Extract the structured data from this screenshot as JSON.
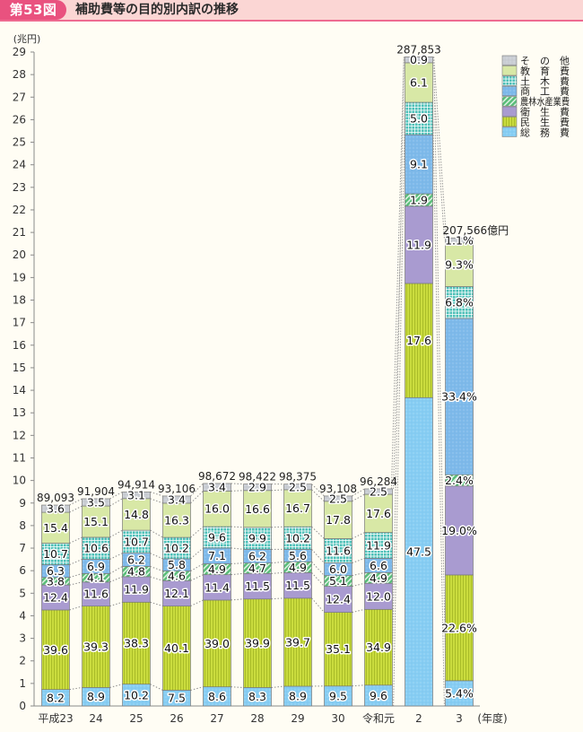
{
  "header": {
    "badge": "第53図",
    "title": "補助費等の目的別内訳の推移"
  },
  "chart_data": {
    "type": "bar",
    "stacked": true,
    "title": "補助費等の目的別内訳の推移",
    "ylabel": "(兆円)",
    "xlabel": "(年度)",
    "ylim": [
      0,
      29
    ],
    "yticks": [
      0,
      1,
      2,
      3,
      4,
      5,
      6,
      7,
      8,
      9,
      10,
      11,
      12,
      13,
      14,
      15,
      16,
      17,
      18,
      19,
      20,
      21,
      22,
      23,
      24,
      25,
      26,
      27,
      28,
      29
    ],
    "grid": false,
    "legend_position": "top-right",
    "segment_values_unit": "percent of total",
    "totals_unit": "億円",
    "categories": [
      "平成23",
      "24",
      "25",
      "26",
      "27",
      "28",
      "29",
      "30",
      "令和元",
      "2",
      "3"
    ],
    "totals": [
      89093,
      91904,
      94914,
      93106,
      98672,
      98422,
      98375,
      93108,
      96284,
      287853,
      207566
    ],
    "total_labels": [
      "89,093",
      "91,904",
      "94,914",
      "93,106",
      "98,672",
      "98,422",
      "98,375",
      "93,108",
      "96,284",
      "287,853",
      "207,566億円"
    ],
    "series": [
      {
        "key": "somu",
        "name": "総務費",
        "color": "#86cdf3",
        "pattern": "dots",
        "values": [
          8.2,
          8.9,
          10.2,
          7.5,
          8.6,
          8.3,
          8.9,
          9.5,
          9.6,
          47.5,
          5.4
        ],
        "labels": [
          "8.2",
          "8.9",
          "10.2",
          "7.5",
          "8.6",
          "8.3",
          "8.9",
          "9.5",
          "9.6",
          "47.5",
          "5.4%"
        ]
      },
      {
        "key": "minsei",
        "name": "民生費",
        "color": "#cadc3e",
        "pattern": "vertical-stripes",
        "values": [
          39.6,
          39.3,
          38.3,
          40.1,
          39.0,
          39.9,
          39.7,
          35.1,
          34.9,
          17.6,
          22.6
        ],
        "labels": [
          "39.6",
          "39.3",
          "38.3",
          "40.1",
          "39.0",
          "39.9",
          "39.7",
          "35.1",
          "34.9",
          "17.6",
          "22.6%"
        ]
      },
      {
        "key": "eisei",
        "name": "衛生費",
        "color": "#a99bd0",
        "pattern": "solid",
        "values": [
          12.4,
          11.6,
          11.9,
          12.1,
          11.4,
          11.5,
          11.5,
          12.4,
          12.0,
          11.9,
          19.0
        ],
        "labels": [
          "12.4",
          "11.6",
          "11.9",
          "12.1",
          "11.4",
          "11.5",
          "11.5",
          "12.4",
          "12.0",
          "11.9",
          "19.0%"
        ]
      },
      {
        "key": "norin",
        "name": "農林水産業費",
        "color": "#5abd79",
        "pattern": "diagonal-hatch",
        "values": [
          3.8,
          4.1,
          4.8,
          4.6,
          4.9,
          4.7,
          4.9,
          5.1,
          4.9,
          1.9,
          2.4
        ],
        "labels": [
          "3.8",
          "4.1",
          "4.8",
          "4.6",
          "4.9",
          "4.7",
          "4.9",
          "5.1",
          "4.9",
          "1.9",
          "2.4%"
        ]
      },
      {
        "key": "shoko",
        "name": "商工費",
        "color": "#7db9ea",
        "pattern": "dots",
        "values": [
          6.3,
          6.9,
          6.2,
          5.8,
          7.1,
          6.2,
          5.6,
          6.0,
          6.6,
          9.1,
          33.4
        ],
        "labels": [
          "6.3",
          "6.9",
          "6.2",
          "5.8",
          "7.1",
          "6.2",
          "5.6",
          "6.0",
          "6.6",
          "9.1",
          "33.4%"
        ]
      },
      {
        "key": "doboku",
        "name": "土木費",
        "color": "#4ec0b8",
        "pattern": "grid",
        "values": [
          10.7,
          10.6,
          10.7,
          10.2,
          9.6,
          9.9,
          10.2,
          11.6,
          11.9,
          5.0,
          6.8
        ],
        "labels": [
          "10.7",
          "10.6",
          "10.7",
          "10.2",
          "9.6",
          "9.9",
          "10.2",
          "11.6",
          "11.9",
          "5.0",
          "6.8%"
        ]
      },
      {
        "key": "kyoiku",
        "name": "教育費",
        "color": "#d8e8a6",
        "pattern": "solid",
        "values": [
          15.4,
          15.1,
          14.8,
          16.3,
          16.0,
          16.6,
          16.7,
          17.8,
          17.6,
          6.1,
          9.3
        ],
        "labels": [
          "15.4",
          "15.1",
          "14.8",
          "16.3",
          "16.0",
          "16.6",
          "16.7",
          "17.8",
          "17.6",
          "6.1",
          "9.3%"
        ]
      },
      {
        "key": "other",
        "name": "その他",
        "color": "#c9cdd3",
        "pattern": "dots",
        "values": [
          3.6,
          3.5,
          3.1,
          3.4,
          3.4,
          2.9,
          2.5,
          2.5,
          2.5,
          0.9,
          1.1
        ],
        "labels": [
          "3.6",
          "3.5",
          "3.1",
          "3.4",
          "3.4",
          "2.9",
          "2.5",
          "2.5",
          "2.5",
          "0.9",
          "1.1%"
        ]
      }
    ]
  }
}
